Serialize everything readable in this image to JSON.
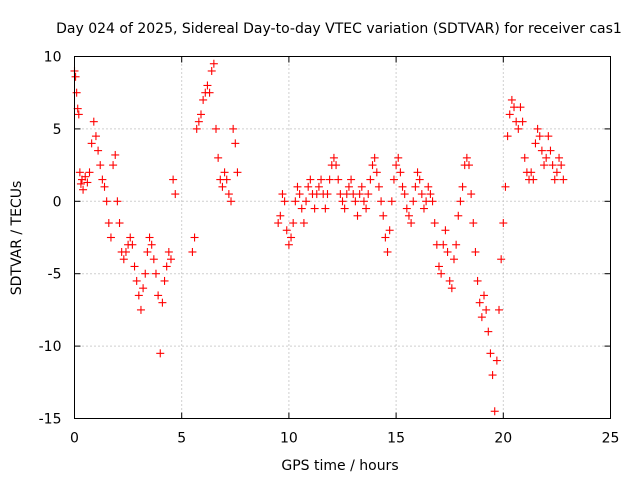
{
  "chart_data": {
    "type": "scatter",
    "title": "Day 024 of 2025, Sidereal Day-to-day VTEC variation (SDTVAR) for receiver cas1",
    "xlabel": "GPS time / hours",
    "ylabel": "SDTVAR / TECUs",
    "xlim": [
      0,
      25
    ],
    "ylim": [
      -15,
      10
    ],
    "xticks": [
      0,
      5,
      10,
      15,
      20,
      25
    ],
    "xtick_labels": [
      "0",
      "5",
      "10",
      "15",
      "20",
      "25"
    ],
    "yticks": [
      -15,
      -10,
      -5,
      0,
      5,
      10
    ],
    "ytick_labels": [
      "-15",
      "-10",
      "-5",
      "0",
      "5",
      "10"
    ],
    "grid": true,
    "marker": "+",
    "series_color": "#ff0000",
    "series": [
      {
        "name": "SDTVAR",
        "x": [
          0.0,
          0.05,
          0.1,
          0.15,
          0.2,
          0.25,
          0.3,
          0.35,
          0.4,
          0.5,
          0.6,
          0.7,
          0.8,
          0.9,
          1.0,
          1.1,
          1.2,
          1.3,
          1.4,
          1.5,
          1.6,
          1.7,
          1.8,
          1.9,
          2.0,
          2.1,
          2.2,
          2.3,
          2.4,
          2.5,
          2.6,
          2.7,
          2.8,
          2.9,
          3.0,
          3.1,
          3.2,
          3.3,
          3.4,
          3.5,
          3.6,
          3.7,
          3.8,
          3.9,
          4.0,
          4.1,
          4.2,
          4.3,
          4.4,
          4.5,
          4.6,
          4.7,
          5.5,
          5.6,
          5.7,
          5.8,
          5.9,
          6.0,
          6.1,
          6.2,
          6.3,
          6.4,
          6.5,
          6.6,
          6.7,
          6.8,
          6.9,
          7.0,
          7.1,
          7.2,
          7.3,
          7.4,
          7.5,
          7.6,
          9.5,
          9.6,
          9.7,
          9.8,
          9.9,
          10.0,
          10.1,
          10.2,
          10.3,
          10.4,
          10.5,
          10.6,
          10.7,
          10.8,
          10.9,
          11.0,
          11.1,
          11.2,
          11.3,
          11.4,
          11.5,
          11.6,
          11.7,
          11.8,
          11.9,
          12.0,
          12.1,
          12.2,
          12.3,
          12.4,
          12.5,
          12.6,
          12.7,
          12.8,
          12.9,
          13.0,
          13.1,
          13.2,
          13.3,
          13.4,
          13.5,
          13.6,
          13.7,
          13.8,
          13.9,
          14.0,
          14.1,
          14.2,
          14.3,
          14.4,
          14.5,
          14.6,
          14.7,
          14.8,
          14.9,
          15.0,
          15.1,
          15.2,
          15.3,
          15.4,
          15.5,
          15.6,
          15.7,
          15.8,
          15.9,
          16.0,
          16.1,
          16.2,
          16.3,
          16.4,
          16.5,
          16.6,
          16.7,
          16.8,
          16.9,
          17.0,
          17.1,
          17.2,
          17.3,
          17.4,
          17.5,
          17.6,
          17.7,
          17.8,
          17.9,
          18.0,
          18.1,
          18.2,
          18.3,
          18.4,
          18.5,
          18.6,
          18.7,
          18.8,
          18.9,
          19.0,
          19.1,
          19.2,
          19.3,
          19.4,
          19.5,
          19.6,
          19.7,
          19.8,
          19.9,
          20.0,
          20.1,
          20.2,
          20.3,
          20.4,
          20.5,
          20.6,
          20.7,
          20.8,
          20.9,
          21.0,
          21.1,
          21.2,
          21.3,
          21.4,
          21.5,
          21.6,
          21.7,
          21.8,
          21.9,
          22.0,
          22.1,
          22.2,
          22.3,
          22.4,
          22.5,
          22.6,
          22.7,
          22.8
        ],
        "y": [
          9.0,
          8.6,
          7.5,
          6.4,
          6.0,
          2.0,
          1.2,
          1.5,
          0.8,
          1.7,
          1.3,
          2.0,
          4.0,
          5.5,
          4.5,
          3.5,
          2.5,
          1.5,
          1.0,
          0.0,
          -1.5,
          -2.5,
          2.5,
          3.2,
          0.0,
          -1.5,
          -3.5,
          -4.0,
          -3.5,
          -3.0,
          -2.5,
          -3.0,
          -4.5,
          -5.5,
          -6.5,
          -7.5,
          -6.0,
          -5.0,
          -3.5,
          -2.5,
          -3.0,
          -4.0,
          -5.0,
          -6.5,
          -10.5,
          -7.0,
          -5.5,
          -4.5,
          -3.5,
          -4.0,
          1.5,
          0.5,
          -3.5,
          -2.5,
          5.0,
          5.5,
          6.0,
          7.0,
          7.5,
          8.0,
          7.5,
          9.0,
          9.5,
          5.0,
          3.0,
          1.5,
          1.0,
          2.0,
          1.5,
          0.5,
          0.0,
          5.0,
          4.0,
          2.0,
          -1.5,
          -1.0,
          0.5,
          0.0,
          -2.0,
          -3.0,
          -2.5,
          -1.5,
          0.0,
          1.0,
          0.5,
          -0.5,
          -1.5,
          0.0,
          1.0,
          1.5,
          0.5,
          -0.5,
          0.5,
          1.0,
          1.5,
          0.5,
          -0.5,
          0.5,
          1.5,
          2.5,
          3.0,
          2.5,
          1.5,
          0.5,
          0.0,
          -0.5,
          0.5,
          1.0,
          1.5,
          0.5,
          0.0,
          -1.0,
          0.5,
          1.0,
          0.0,
          -0.5,
          0.5,
          1.5,
          2.5,
          3.0,
          2.0,
          1.0,
          0.0,
          -1.0,
          -2.5,
          -3.5,
          -2.0,
          0.0,
          1.5,
          2.5,
          3.0,
          2.0,
          1.0,
          0.5,
          -0.5,
          -1.0,
          -1.5,
          0.0,
          1.0,
          2.0,
          1.5,
          0.5,
          -0.5,
          0.0,
          1.0,
          0.5,
          0.0,
          -1.5,
          -3.0,
          -4.5,
          -5.0,
          -3.0,
          -2.0,
          -3.5,
          -5.5,
          -6.0,
          -4.0,
          -3.0,
          -1.0,
          0.0,
          1.0,
          2.5,
          3.0,
          2.5,
          0.5,
          -1.5,
          -3.5,
          -5.5,
          -7.0,
          -8.0,
          -6.5,
          -7.5,
          -9.0,
          -10.5,
          -12.0,
          -14.5,
          -11.0,
          -7.5,
          -4.0,
          -1.5,
          1.0,
          4.5,
          6.0,
          7.0,
          6.5,
          5.5,
          5.0,
          6.5,
          5.5,
          3.0,
          2.0,
          1.5,
          2.0,
          1.5,
          4.0,
          5.0,
          4.5,
          3.5,
          2.5,
          3.0,
          4.5,
          3.5,
          2.5,
          1.5,
          2.0,
          3.0,
          2.5,
          1.5
        ]
      }
    ]
  }
}
